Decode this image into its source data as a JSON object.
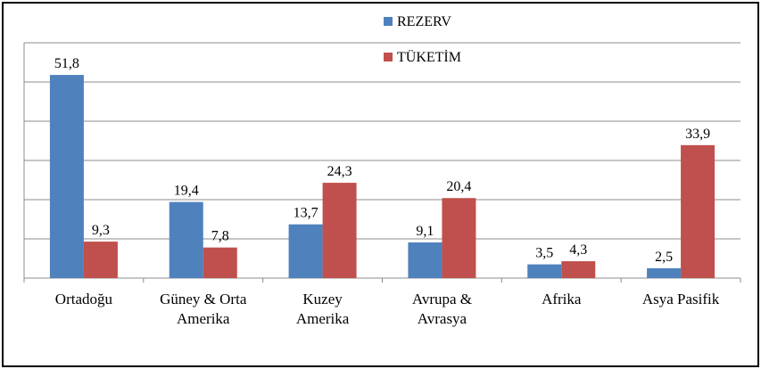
{
  "chart_data": {
    "type": "bar",
    "categories": [
      [
        "Ortadoğu"
      ],
      [
        "Güney & Orta",
        "Amerika"
      ],
      [
        "Kuzey",
        "Amerika"
      ],
      [
        "Avrupa &",
        "Avrasya"
      ],
      [
        "Afrika"
      ],
      [
        "Asya Pasifik"
      ]
    ],
    "series": [
      {
        "name": "REZERV",
        "color": "#4F81BD",
        "values": [
          51.8,
          19.4,
          13.7,
          9.1,
          3.5,
          2.5
        ],
        "labels": [
          "51,8",
          "19,4",
          "13,7",
          "9,1",
          "3,5",
          "2,5"
        ]
      },
      {
        "name": "TÜKETİM",
        "color": "#C0504D",
        "values": [
          9.3,
          7.8,
          24.3,
          20.4,
          4.3,
          33.9
        ],
        "labels": [
          "9,3",
          "7,8",
          "24,3",
          "20,4",
          "4,3",
          "33,9"
        ]
      }
    ],
    "ylim": [
      0,
      60
    ],
    "grid": true,
    "legend": "top-center"
  }
}
